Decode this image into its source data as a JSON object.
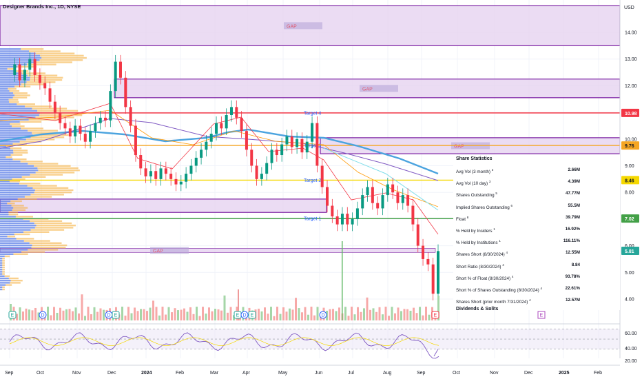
{
  "header": {
    "title": "Designer Brands Inc., 1D, NYSE"
  },
  "currency_label": "USD",
  "colors": {
    "gap_fill": "#e6d3f0",
    "gap_border": "#7b1fa2",
    "target_line": "#f23645",
    "target2_line": "#f5d800",
    "target1_line": "#43a047",
    "target_text": "#2962ff",
    "up_candle": "#089981",
    "down_candle": "#f23645",
    "price_badge": "#26a69a",
    "vp_blue": "#5b7ee5",
    "vp_orange": "#f5b041",
    "ma_blue": "#4aa3df"
  },
  "chart_data": {
    "type": "candlestick",
    "title": "Designer Brands Inc., 1D, NYSE",
    "y_axis": {
      "ticks": [
        "14.00",
        "13.00",
        "12.00",
        "11.00",
        "10.00",
        "9.00",
        "8.00",
        "7.00",
        "6.00",
        "5.00",
        "4.00"
      ],
      "range": [
        3.7,
        15.0
      ]
    },
    "x_axis": {
      "ticks": [
        "Sep",
        "Oct",
        "Nov",
        "Dec",
        "2024",
        "Feb",
        "Mar",
        "Apr",
        "May",
        "Jun",
        "Jul",
        "Aug",
        "Sep",
        "Oct",
        "Nov",
        "Dec",
        "2025",
        "Feb"
      ]
    },
    "price_levels": [
      {
        "label": "10.98",
        "value": 10.98,
        "color": "#f23645"
      },
      {
        "label": "9.76",
        "value": 9.76,
        "color": "#f5a623"
      },
      {
        "label": "8.46",
        "value": 8.46,
        "color": "#f5d800"
      },
      {
        "label": "7.02",
        "value": 7.02,
        "color": "#43a047"
      },
      {
        "label": "5.81",
        "value": 5.81,
        "color": "#26a69a"
      }
    ],
    "targets": [
      {
        "label": "Target 4",
        "value": 10.98
      },
      {
        "label": "Target 3",
        "value": 9.76
      },
      {
        "label": "Target 2",
        "value": 8.46
      },
      {
        "label": "Target 1",
        "value": 7.02
      }
    ],
    "gap_zones": [
      {
        "label": "GAP",
        "low": 13.5,
        "high": 15.0
      },
      {
        "label": "GAP",
        "low": 11.55,
        "high": 12.25
      },
      {
        "label": "GAP",
        "low": 9.45,
        "high": 10.05
      },
      {
        "label": "",
        "low": 7.25,
        "high": 7.75
      },
      {
        "label": "GAP",
        "low": 5.75,
        "high": 5.9
      }
    ],
    "events": [
      {
        "label": "E",
        "kind": "earnings"
      },
      {
        "label": "D",
        "kind": "dividend"
      },
      {
        "label": "D",
        "kind": "dividend"
      },
      {
        "label": "E",
        "kind": "earnings"
      },
      {
        "label": "E",
        "kind": "earnings"
      },
      {
        "label": "D",
        "kind": "dividend"
      },
      {
        "label": "E",
        "kind": "earnings"
      },
      {
        "label": "D",
        "kind": "dividend"
      },
      {
        "label": "E",
        "kind": "earnings"
      },
      {
        "label": "E",
        "kind": "earnings"
      }
    ],
    "rsi": {
      "ticks": [
        "60.00",
        "40.00",
        "20.00"
      ],
      "range": [
        10,
        72
      ]
    },
    "price_path": [
      12.4,
      12.8,
      12.2,
      12.6,
      13.0,
      12.4,
      12.1,
      11.9,
      11.4,
      11.0,
      10.6,
      10.4,
      10.1,
      10.5,
      10.2,
      9.9,
      10.3,
      10.6,
      10.8,
      10.7,
      11.8,
      12.9,
      12.3,
      11.2,
      10.5,
      9.4,
      8.9,
      8.6,
      8.8,
      8.5,
      8.9,
      8.7,
      8.5,
      8.3,
      8.4,
      8.7,
      9.0,
      9.3,
      9.6,
      9.9,
      10.2,
      10.6,
      10.4,
      10.9,
      11.2,
      10.8,
      10.3,
      9.6,
      9.0,
      8.5,
      8.7,
      9.1,
      9.6,
      9.4,
      9.8,
      10.1,
      9.7,
      10.0,
      9.5,
      9.9,
      10.6,
      9.0,
      8.2,
      7.5,
      7.1,
      6.8,
      7.2,
      6.8,
      7.0,
      7.4,
      7.9,
      8.2,
      7.6,
      7.4,
      7.9,
      8.3,
      8.0,
      7.6,
      7.9,
      7.5,
      6.8,
      6.0,
      5.5,
      5.3,
      4.2,
      5.8
    ]
  },
  "share_statistics": {
    "title": "Share Statistics",
    "rows": [
      {
        "label": "Avg Vol (3 month)",
        "sup": "3",
        "value": "2.66M"
      },
      {
        "label": "Avg Vol (10 day)",
        "sup": "3",
        "value": "4.39M"
      },
      {
        "label": "Shares Outstanding",
        "sup": "5",
        "value": "47.77M"
      },
      {
        "label": "Implied Shares Outstanding",
        "sup": "6",
        "value": "55.5M"
      },
      {
        "label": "Float",
        "sup": "8",
        "value": "39.79M"
      },
      {
        "label": "% Held by Insiders",
        "sup": "1",
        "value": "16.92%"
      },
      {
        "label": "% Held by Institutions",
        "sup": "1",
        "value": "116.11%"
      },
      {
        "label": "Shares Short (8/30/2024)",
        "sup": "4",
        "value": "12.55M"
      },
      {
        "label": "Short Ratio (8/30/2024)",
        "sup": "4",
        "value": "8.84"
      },
      {
        "label": "Short % of Float (8/30/2024)",
        "sup": "4",
        "value": "93.78%"
      },
      {
        "label": "Short % of Shares Outstanding (8/30/2024)",
        "sup": "4",
        "value": "22.61%"
      },
      {
        "label": "Shares Short (prior month 7/31/2024)",
        "sup": "4",
        "value": "12.57M"
      }
    ],
    "next_section": "Dividends & Splits"
  }
}
